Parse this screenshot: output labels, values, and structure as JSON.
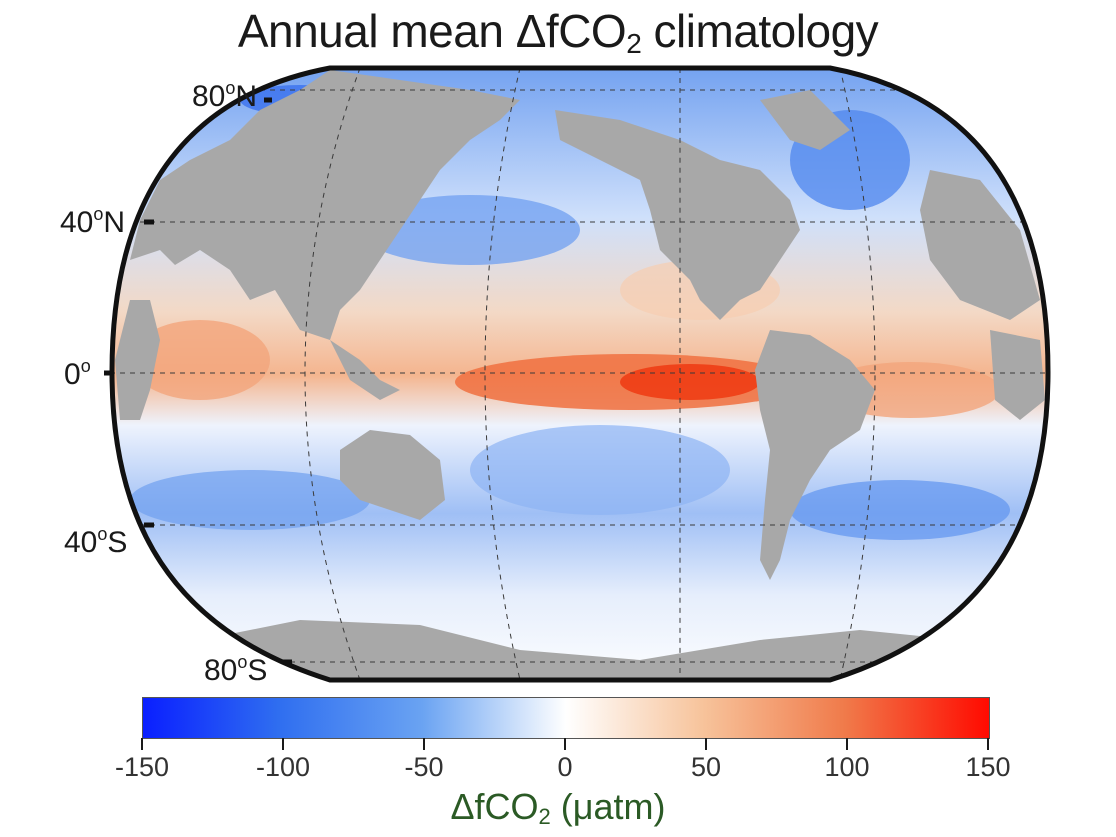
{
  "title": {
    "prefix": "Annual mean ΔfCO",
    "subscript": "2",
    "suffix": " climatology"
  },
  "lat_labels": {
    "n80": {
      "value": "80",
      "sup": "o",
      "hemi": "N"
    },
    "n40": {
      "value": "40",
      "sup": "o",
      "hemi": "N"
    },
    "eq": {
      "value": "0",
      "sup": "o",
      "hemi": ""
    },
    "s40": {
      "value": "40",
      "sup": "o",
      "hemi": "S"
    },
    "s80": {
      "value": "80",
      "sup": "o",
      "hemi": "S"
    }
  },
  "colorbar": {
    "ticks": [
      "-150",
      "-100",
      "-50",
      "0",
      "50",
      "100",
      "150"
    ],
    "min": -150,
    "max": 150,
    "colors": {
      "min": "#0a1fff",
      "mid": "#ffffff",
      "max": "#ff0a00"
    },
    "title_prefix": "ΔfCO",
    "title_subscript": "2",
    "title_suffix": " (μatm)"
  },
  "map": {
    "projection": "Robinson",
    "land_color": "#a8a8a8",
    "ocean_field": "ΔfCO2",
    "graticule": "dashed"
  }
}
